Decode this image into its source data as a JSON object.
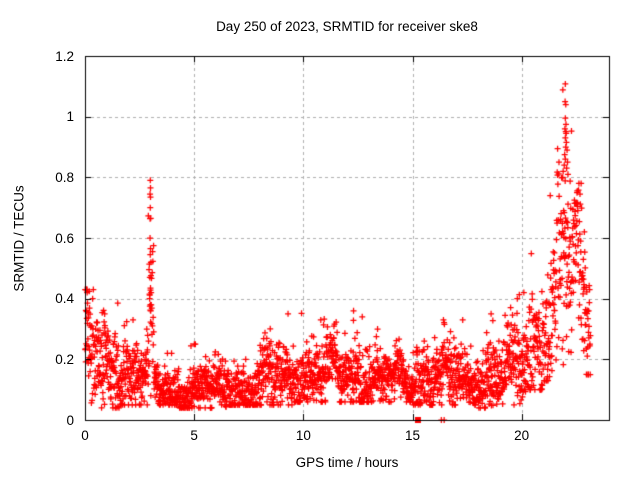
{
  "title": "Day 250 of 2023, SRMTID for receiver ske8",
  "chart_data": {
    "type": "scatter",
    "title": "Day 250 of 2023, SRMTID for receiver ske8",
    "xlabel": "GPS time / hours",
    "ylabel": "SRMTID / TECUs",
    "xlim": [
      0,
      24
    ],
    "ylim": [
      0,
      1.2
    ],
    "xticks": [
      0,
      5,
      10,
      15,
      20
    ],
    "yticks": [
      0,
      0.2,
      0.4,
      0.6,
      0.8,
      1,
      1.2
    ],
    "grid": true,
    "legend": "none",
    "marker": "plus",
    "marker_color": "#ff0000",
    "grid_color": "#b0b0b0",
    "border_color": "#000000",
    "points_per_hour": 115,
    "seed": 2023250,
    "description": "Dense red plus-marker scatter: band ~0.1-0.25 TECUs through the day, brief spike column near 3 h reaching 0.79, quiet 4-9 h near 0.1, steady rise after 20 h peaking 1.11 at ~22 h, data ends ~23.1 h",
    "segments": [
      {
        "t0": 0.0,
        "t1": 0.4,
        "mean": 0.22,
        "sigma": 0.085,
        "lo": 0.05,
        "hi": 0.43
      },
      {
        "t0": 0.4,
        "t1": 1.6,
        "mean": 0.19,
        "sigma": 0.07,
        "lo": 0.04,
        "hi": 0.4
      },
      {
        "t0": 1.6,
        "t1": 2.6,
        "mean": 0.16,
        "sigma": 0.06,
        "lo": 0.05,
        "hi": 0.34
      },
      {
        "t0": 2.6,
        "t1": 2.9,
        "mean": 0.14,
        "sigma": 0.05,
        "lo": 0.05,
        "hi": 0.3
      },
      {
        "t0": 2.9,
        "t1": 3.15,
        "mean": 0.26,
        "sigma": 0.13,
        "lo": 0.08,
        "hi": 0.8
      },
      {
        "t0": 3.15,
        "t1": 4.2,
        "mean": 0.1,
        "sigma": 0.035,
        "lo": 0.05,
        "hi": 0.22
      },
      {
        "t0": 4.2,
        "t1": 6.5,
        "mean": 0.105,
        "sigma": 0.04,
        "lo": 0.04,
        "hi": 0.25
      },
      {
        "t0": 6.5,
        "t1": 8.0,
        "mean": 0.11,
        "sigma": 0.042,
        "lo": 0.05,
        "hi": 0.26
      },
      {
        "t0": 8.0,
        "t1": 9.5,
        "mean": 0.13,
        "sigma": 0.05,
        "lo": 0.05,
        "hi": 0.33
      },
      {
        "t0": 9.5,
        "t1": 11.5,
        "mean": 0.16,
        "sigma": 0.052,
        "lo": 0.06,
        "hi": 0.36
      },
      {
        "t0": 11.5,
        "t1": 13.0,
        "mean": 0.15,
        "sigma": 0.05,
        "lo": 0.06,
        "hi": 0.34
      },
      {
        "t0": 13.0,
        "t1": 15.0,
        "mean": 0.13,
        "sigma": 0.042,
        "lo": 0.06,
        "hi": 0.28
      },
      {
        "t0": 15.0,
        "t1": 16.5,
        "mean": 0.14,
        "sigma": 0.05,
        "lo": 0.05,
        "hi": 0.33
      },
      {
        "t0": 16.5,
        "t1": 18.0,
        "mean": 0.13,
        "sigma": 0.05,
        "lo": 0.05,
        "hi": 0.3
      },
      {
        "t0": 18.0,
        "t1": 19.3,
        "mean": 0.13,
        "sigma": 0.055,
        "lo": 0.04,
        "hi": 0.35
      },
      {
        "t0": 19.3,
        "t1": 20.3,
        "mean": 0.16,
        "sigma": 0.065,
        "lo": 0.05,
        "hi": 0.42
      },
      {
        "t0": 20.3,
        "t1": 21.0,
        "mean": 0.27,
        "sigma": 0.09,
        "lo": 0.1,
        "hi": 0.56
      },
      {
        "t0": 21.0,
        "t1": 21.6,
        "mean": 0.36,
        "sigma": 0.12,
        "lo": 0.13,
        "hi": 0.74
      },
      {
        "t0": 21.6,
        "t1": 22.3,
        "mean": 0.52,
        "sigma": 0.16,
        "lo": 0.18,
        "hi": 1.11
      },
      {
        "t0": 22.3,
        "t1": 22.8,
        "mean": 0.45,
        "sigma": 0.12,
        "lo": 0.16,
        "hi": 0.78
      },
      {
        "t0": 22.8,
        "t1": 23.15,
        "mean": 0.37,
        "sigma": 0.11,
        "lo": 0.15,
        "hi": 0.62
      }
    ],
    "outliers": [
      [
        2.99,
        0.79
      ],
      [
        3.0,
        0.765
      ],
      [
        2.98,
        0.745
      ],
      [
        3.0,
        0.735
      ],
      [
        2.99,
        0.7
      ],
      [
        3.01,
        0.665
      ],
      [
        2.98,
        0.6
      ],
      [
        3.0,
        0.565
      ],
      [
        2.99,
        0.545
      ],
      [
        3.02,
        0.52
      ],
      [
        2.97,
        0.47
      ],
      [
        3.0,
        0.435
      ],
      [
        3.03,
        0.42
      ],
      [
        2.96,
        0.4
      ],
      [
        3.0,
        0.38
      ],
      [
        3.01,
        0.36
      ],
      [
        22.0,
        1.108
      ],
      [
        21.99,
        1.05
      ],
      [
        22.02,
        1.04
      ],
      [
        22.0,
        0.995
      ],
      [
        22.03,
        0.975
      ],
      [
        21.98,
        0.96
      ],
      [
        22.04,
        0.945
      ],
      [
        22.0,
        0.93
      ],
      [
        22.05,
        0.915
      ],
      [
        22.02,
        0.9
      ],
      [
        22.08,
        0.89
      ],
      [
        21.97,
        0.875
      ],
      [
        22.0,
        0.86
      ],
      [
        22.1,
        0.85
      ],
      [
        21.95,
        0.84
      ],
      [
        22.06,
        0.83
      ],
      [
        21.9,
        0.82
      ],
      [
        22.12,
        0.81
      ],
      [
        21.88,
        0.8
      ],
      [
        0.1,
        0.42
      ],
      [
        0.35,
        0.4
      ],
      [
        1.5,
        0.385
      ],
      [
        2.2,
        0.33
      ],
      [
        9.3,
        0.35
      ],
      [
        10.8,
        0.33
      ],
      [
        12.3,
        0.36
      ],
      [
        13.4,
        0.3
      ],
      [
        17.3,
        0.33
      ],
      [
        18.6,
        0.35
      ],
      [
        19.8,
        0.4
      ],
      [
        20.1,
        0.42
      ],
      [
        16.32,
        0.0
      ],
      [
        16.45,
        0.0
      ]
    ],
    "square_points": [
      [
        15.25,
        0.0
      ]
    ]
  }
}
